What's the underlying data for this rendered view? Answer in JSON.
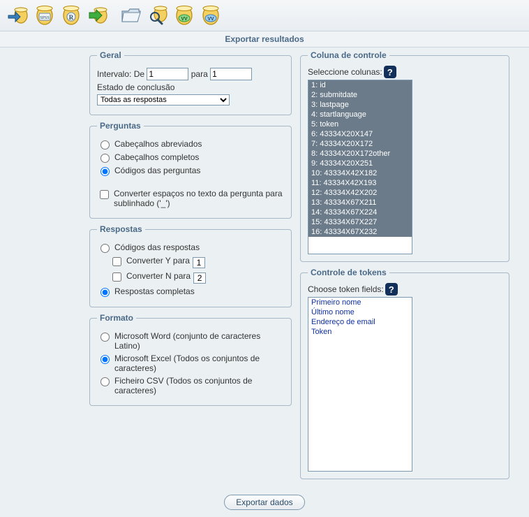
{
  "toolbar": {
    "icons": [
      "export-app",
      "export-spss",
      "export-r",
      "export-arrow",
      "folder-open",
      "magnifier-db",
      "export-vv1",
      "export-vv2"
    ]
  },
  "title": "Exportar resultados",
  "geral": {
    "legend": "Geral",
    "intervalo_label": "Intervalo: De",
    "intervalo_from": "1",
    "para_label": "para",
    "intervalo_to": "1",
    "estado_label": "Estado de conclusão",
    "dropdown_selected": "Todas as respostas"
  },
  "perguntas": {
    "legend": "Perguntas",
    "opt1": "Cabeçalhos abreviados",
    "opt2": "Cabeçalhos completos",
    "opt3": "Códigos das perguntas",
    "selected": "opt3",
    "conv_label": "Converter espaços no texto da pergunta para sublinhado ('_')"
  },
  "respostas": {
    "legend": "Respostas",
    "opt1": "Códigos das respostas",
    "conv_y": "Converter Y para",
    "conv_y_val": "1",
    "conv_n": "Converter N para",
    "conv_n_val": "2",
    "opt2": "Respostas completas",
    "selected": "opt2"
  },
  "formato": {
    "legend": "Formato",
    "opt1": "Microsoft Word (conjunto de caracteres Latino)",
    "opt2": "Microsoft Excel (Todos os conjuntos de caracteres)",
    "opt3": "Ficheiro CSV (Todos os conjuntos de caracteres)",
    "selected": "opt2"
  },
  "coluna": {
    "legend": "Coluna de controle",
    "label": "Seleccione colunas:",
    "items": [
      "1: id",
      "2: submitdate",
      "3: lastpage",
      "4: startlanguage",
      "5: token",
      "6: 43334X20X147",
      "7: 43334X20X172",
      "8: 43334X20X172other",
      "9: 43334X20X251",
      "10: 43334X42X182",
      "11: 43334X42X193",
      "12: 43334X42X202",
      "13: 43334X67X211",
      "14: 43334X67X224",
      "15: 43334X67X227",
      "16: 43334X67X232"
    ],
    "selected_count": 16
  },
  "tokens": {
    "legend": "Controle de tokens",
    "label": "Choose token fields:",
    "items": [
      "Primeiro nome",
      "Último nome",
      "Endereço de email",
      "Token"
    ]
  },
  "export_button": "Exportar dados"
}
